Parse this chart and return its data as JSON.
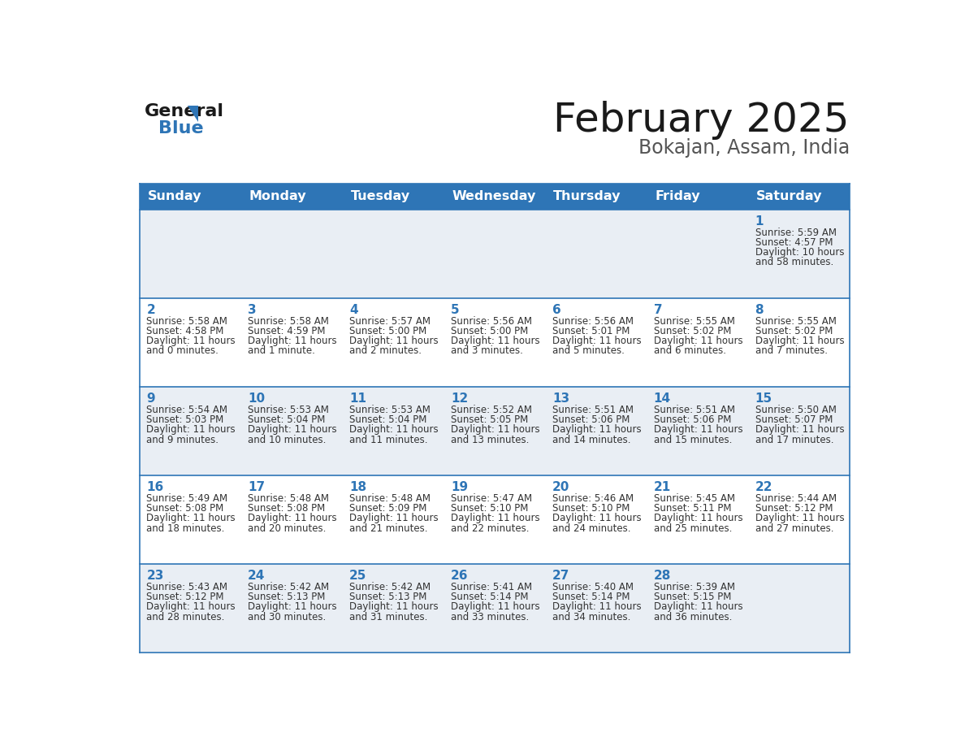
{
  "title": "February 2025",
  "subtitle": "Bokajan, Assam, India",
  "header_bg": "#2E75B6",
  "header_text_color": "#FFFFFF",
  "day_names": [
    "Sunday",
    "Monday",
    "Tuesday",
    "Wednesday",
    "Thursday",
    "Friday",
    "Saturday"
  ],
  "alt_row_bg": "#E9EEF4",
  "white_bg": "#FFFFFF",
  "cell_border_color": "#2E75B6",
  "day_num_color": "#2E75B6",
  "info_text_color": "#333333",
  "title_color": "#1a1a1a",
  "subtitle_color": "#555555",
  "logo_general_color": "#1a1a1a",
  "logo_blue_color": "#2E75B6",
  "calendar_data": [
    [
      null,
      null,
      null,
      null,
      null,
      null,
      {
        "day": 1,
        "sunrise": "5:59 AM",
        "sunset": "4:57 PM",
        "dl1": "Daylight: 10 hours",
        "dl2": "and 58 minutes."
      }
    ],
    [
      {
        "day": 2,
        "sunrise": "5:58 AM",
        "sunset": "4:58 PM",
        "dl1": "Daylight: 11 hours",
        "dl2": "and 0 minutes."
      },
      {
        "day": 3,
        "sunrise": "5:58 AM",
        "sunset": "4:59 PM",
        "dl1": "Daylight: 11 hours",
        "dl2": "and 1 minute."
      },
      {
        "day": 4,
        "sunrise": "5:57 AM",
        "sunset": "5:00 PM",
        "dl1": "Daylight: 11 hours",
        "dl2": "and 2 minutes."
      },
      {
        "day": 5,
        "sunrise": "5:56 AM",
        "sunset": "5:00 PM",
        "dl1": "Daylight: 11 hours",
        "dl2": "and 3 minutes."
      },
      {
        "day": 6,
        "sunrise": "5:56 AM",
        "sunset": "5:01 PM",
        "dl1": "Daylight: 11 hours",
        "dl2": "and 5 minutes."
      },
      {
        "day": 7,
        "sunrise": "5:55 AM",
        "sunset": "5:02 PM",
        "dl1": "Daylight: 11 hours",
        "dl2": "and 6 minutes."
      },
      {
        "day": 8,
        "sunrise": "5:55 AM",
        "sunset": "5:02 PM",
        "dl1": "Daylight: 11 hours",
        "dl2": "and 7 minutes."
      }
    ],
    [
      {
        "day": 9,
        "sunrise": "5:54 AM",
        "sunset": "5:03 PM",
        "dl1": "Daylight: 11 hours",
        "dl2": "and 9 minutes."
      },
      {
        "day": 10,
        "sunrise": "5:53 AM",
        "sunset": "5:04 PM",
        "dl1": "Daylight: 11 hours",
        "dl2": "and 10 minutes."
      },
      {
        "day": 11,
        "sunrise": "5:53 AM",
        "sunset": "5:04 PM",
        "dl1": "Daylight: 11 hours",
        "dl2": "and 11 minutes."
      },
      {
        "day": 12,
        "sunrise": "5:52 AM",
        "sunset": "5:05 PM",
        "dl1": "Daylight: 11 hours",
        "dl2": "and 13 minutes."
      },
      {
        "day": 13,
        "sunrise": "5:51 AM",
        "sunset": "5:06 PM",
        "dl1": "Daylight: 11 hours",
        "dl2": "and 14 minutes."
      },
      {
        "day": 14,
        "sunrise": "5:51 AM",
        "sunset": "5:06 PM",
        "dl1": "Daylight: 11 hours",
        "dl2": "and 15 minutes."
      },
      {
        "day": 15,
        "sunrise": "5:50 AM",
        "sunset": "5:07 PM",
        "dl1": "Daylight: 11 hours",
        "dl2": "and 17 minutes."
      }
    ],
    [
      {
        "day": 16,
        "sunrise": "5:49 AM",
        "sunset": "5:08 PM",
        "dl1": "Daylight: 11 hours",
        "dl2": "and 18 minutes."
      },
      {
        "day": 17,
        "sunrise": "5:48 AM",
        "sunset": "5:08 PM",
        "dl1": "Daylight: 11 hours",
        "dl2": "and 20 minutes."
      },
      {
        "day": 18,
        "sunrise": "5:48 AM",
        "sunset": "5:09 PM",
        "dl1": "Daylight: 11 hours",
        "dl2": "and 21 minutes."
      },
      {
        "day": 19,
        "sunrise": "5:47 AM",
        "sunset": "5:10 PM",
        "dl1": "Daylight: 11 hours",
        "dl2": "and 22 minutes."
      },
      {
        "day": 20,
        "sunrise": "5:46 AM",
        "sunset": "5:10 PM",
        "dl1": "Daylight: 11 hours",
        "dl2": "and 24 minutes."
      },
      {
        "day": 21,
        "sunrise": "5:45 AM",
        "sunset": "5:11 PM",
        "dl1": "Daylight: 11 hours",
        "dl2": "and 25 minutes."
      },
      {
        "day": 22,
        "sunrise": "5:44 AM",
        "sunset": "5:12 PM",
        "dl1": "Daylight: 11 hours",
        "dl2": "and 27 minutes."
      }
    ],
    [
      {
        "day": 23,
        "sunrise": "5:43 AM",
        "sunset": "5:12 PM",
        "dl1": "Daylight: 11 hours",
        "dl2": "and 28 minutes."
      },
      {
        "day": 24,
        "sunrise": "5:42 AM",
        "sunset": "5:13 PM",
        "dl1": "Daylight: 11 hours",
        "dl2": "and 30 minutes."
      },
      {
        "day": 25,
        "sunrise": "5:42 AM",
        "sunset": "5:13 PM",
        "dl1": "Daylight: 11 hours",
        "dl2": "and 31 minutes."
      },
      {
        "day": 26,
        "sunrise": "5:41 AM",
        "sunset": "5:14 PM",
        "dl1": "Daylight: 11 hours",
        "dl2": "and 33 minutes."
      },
      {
        "day": 27,
        "sunrise": "5:40 AM",
        "sunset": "5:14 PM",
        "dl1": "Daylight: 11 hours",
        "dl2": "and 34 minutes."
      },
      {
        "day": 28,
        "sunrise": "5:39 AM",
        "sunset": "5:15 PM",
        "dl1": "Daylight: 11 hours",
        "dl2": "and 36 minutes."
      },
      null
    ]
  ]
}
